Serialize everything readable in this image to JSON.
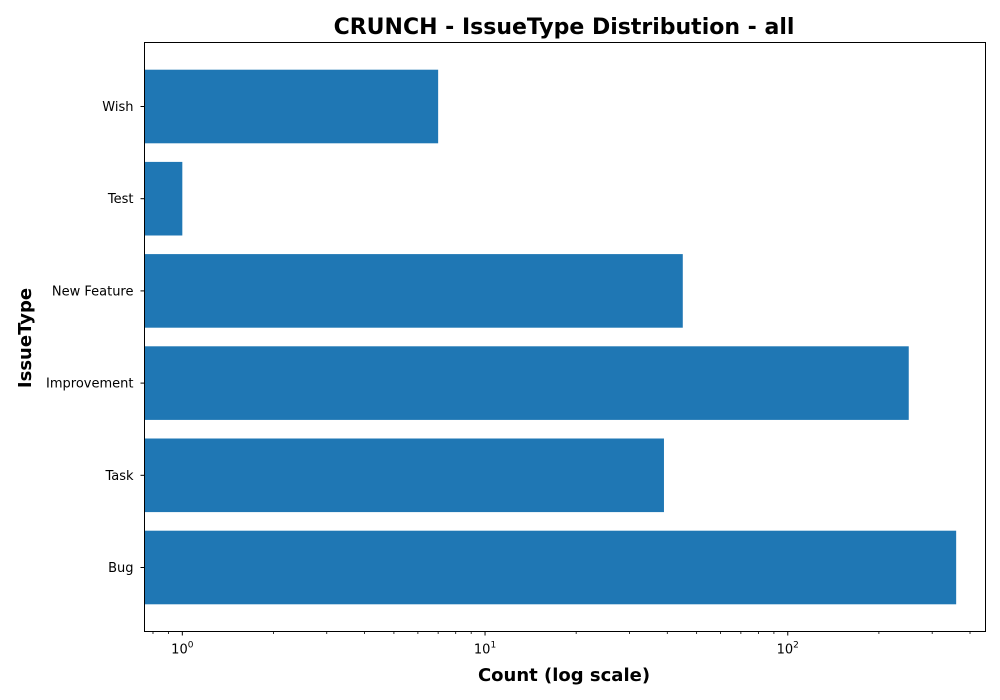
{
  "colors": {
    "bar": "#1f77b4",
    "axis": "#000000",
    "background": "#ffffff"
  },
  "chart_data": {
    "type": "bar",
    "orientation": "horizontal",
    "title": "CRUNCH - IssueType Distribution - all",
    "xlabel": "Count (log scale)",
    "ylabel": "IssueType",
    "xscale": "log",
    "xlim": [
      0.75,
      450
    ],
    "xticks": [
      {
        "value": 1,
        "base": "10",
        "exp": "0"
      },
      {
        "value": 10,
        "base": "10",
        "exp": "1"
      },
      {
        "value": 100,
        "base": "10",
        "exp": "2"
      }
    ],
    "categories": [
      "Bug",
      "Task",
      "Improvement",
      "New Feature",
      "Test",
      "Wish"
    ],
    "values": [
      360,
      39,
      251,
      45,
      1,
      7
    ],
    "grid": false,
    "legend": false
  }
}
